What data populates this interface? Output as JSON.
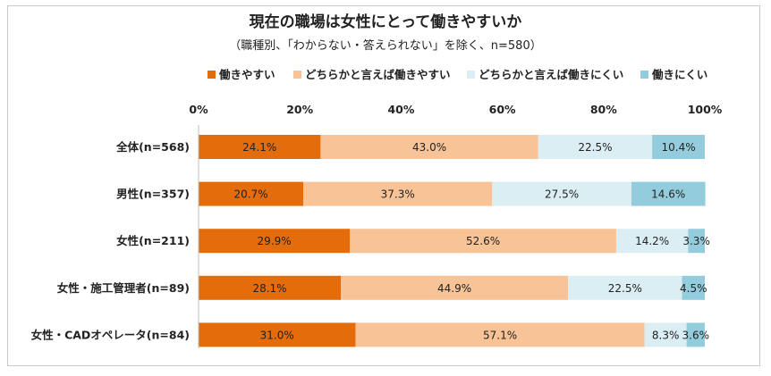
{
  "chart_data": {
    "type": "bar",
    "orientation": "horizontal",
    "stacked": true,
    "title": "現在の職場は女性にとって働きやすいか",
    "subtitle": "（職種別、「わからない・答えられない」を除く、n=580）",
    "categories": [
      "全体(n=568)",
      "男性(n=357)",
      "女性(n=211)",
      "女性・施工管理者(n=89)",
      "女性・CADオペレータ(n=84)"
    ],
    "series": [
      {
        "name": "働きやすい",
        "color": "#e46c0a",
        "values": [
          24.1,
          20.7,
          29.9,
          28.1,
          31.0
        ],
        "labels": [
          "24.1%",
          "20.7%",
          "29.9%",
          "28.1%",
          "31.0%"
        ]
      },
      {
        "name": "どちらかと言えば働きやすい",
        "color": "#f8c396",
        "values": [
          43.0,
          37.3,
          52.6,
          44.9,
          57.1
        ],
        "labels": [
          "43.0%",
          "37.3%",
          "52.6%",
          "44.9%",
          "57.1%"
        ]
      },
      {
        "name": "どちらかと言えば働きにくい",
        "color": "#dbeef4",
        "values": [
          22.5,
          27.5,
          14.2,
          22.5,
          8.3
        ],
        "labels": [
          "22.5%",
          "27.5%",
          "14.2%",
          "22.5%",
          "8.3%"
        ]
      },
      {
        "name": "働きにくい",
        "color": "#93cddd",
        "values": [
          10.4,
          14.6,
          3.3,
          4.5,
          3.6
        ],
        "labels": [
          "10.4%",
          "14.6%",
          "3.3%",
          "4.5%",
          "3.6%"
        ]
      }
    ],
    "xlim": [
      0,
      100
    ],
    "xticks": [
      0,
      20,
      40,
      60,
      80,
      100
    ],
    "xtick_labels": [
      "0%",
      "20%",
      "40%",
      "60%",
      "80%",
      "100%"
    ],
    "legend_position": "top",
    "grid": false
  }
}
